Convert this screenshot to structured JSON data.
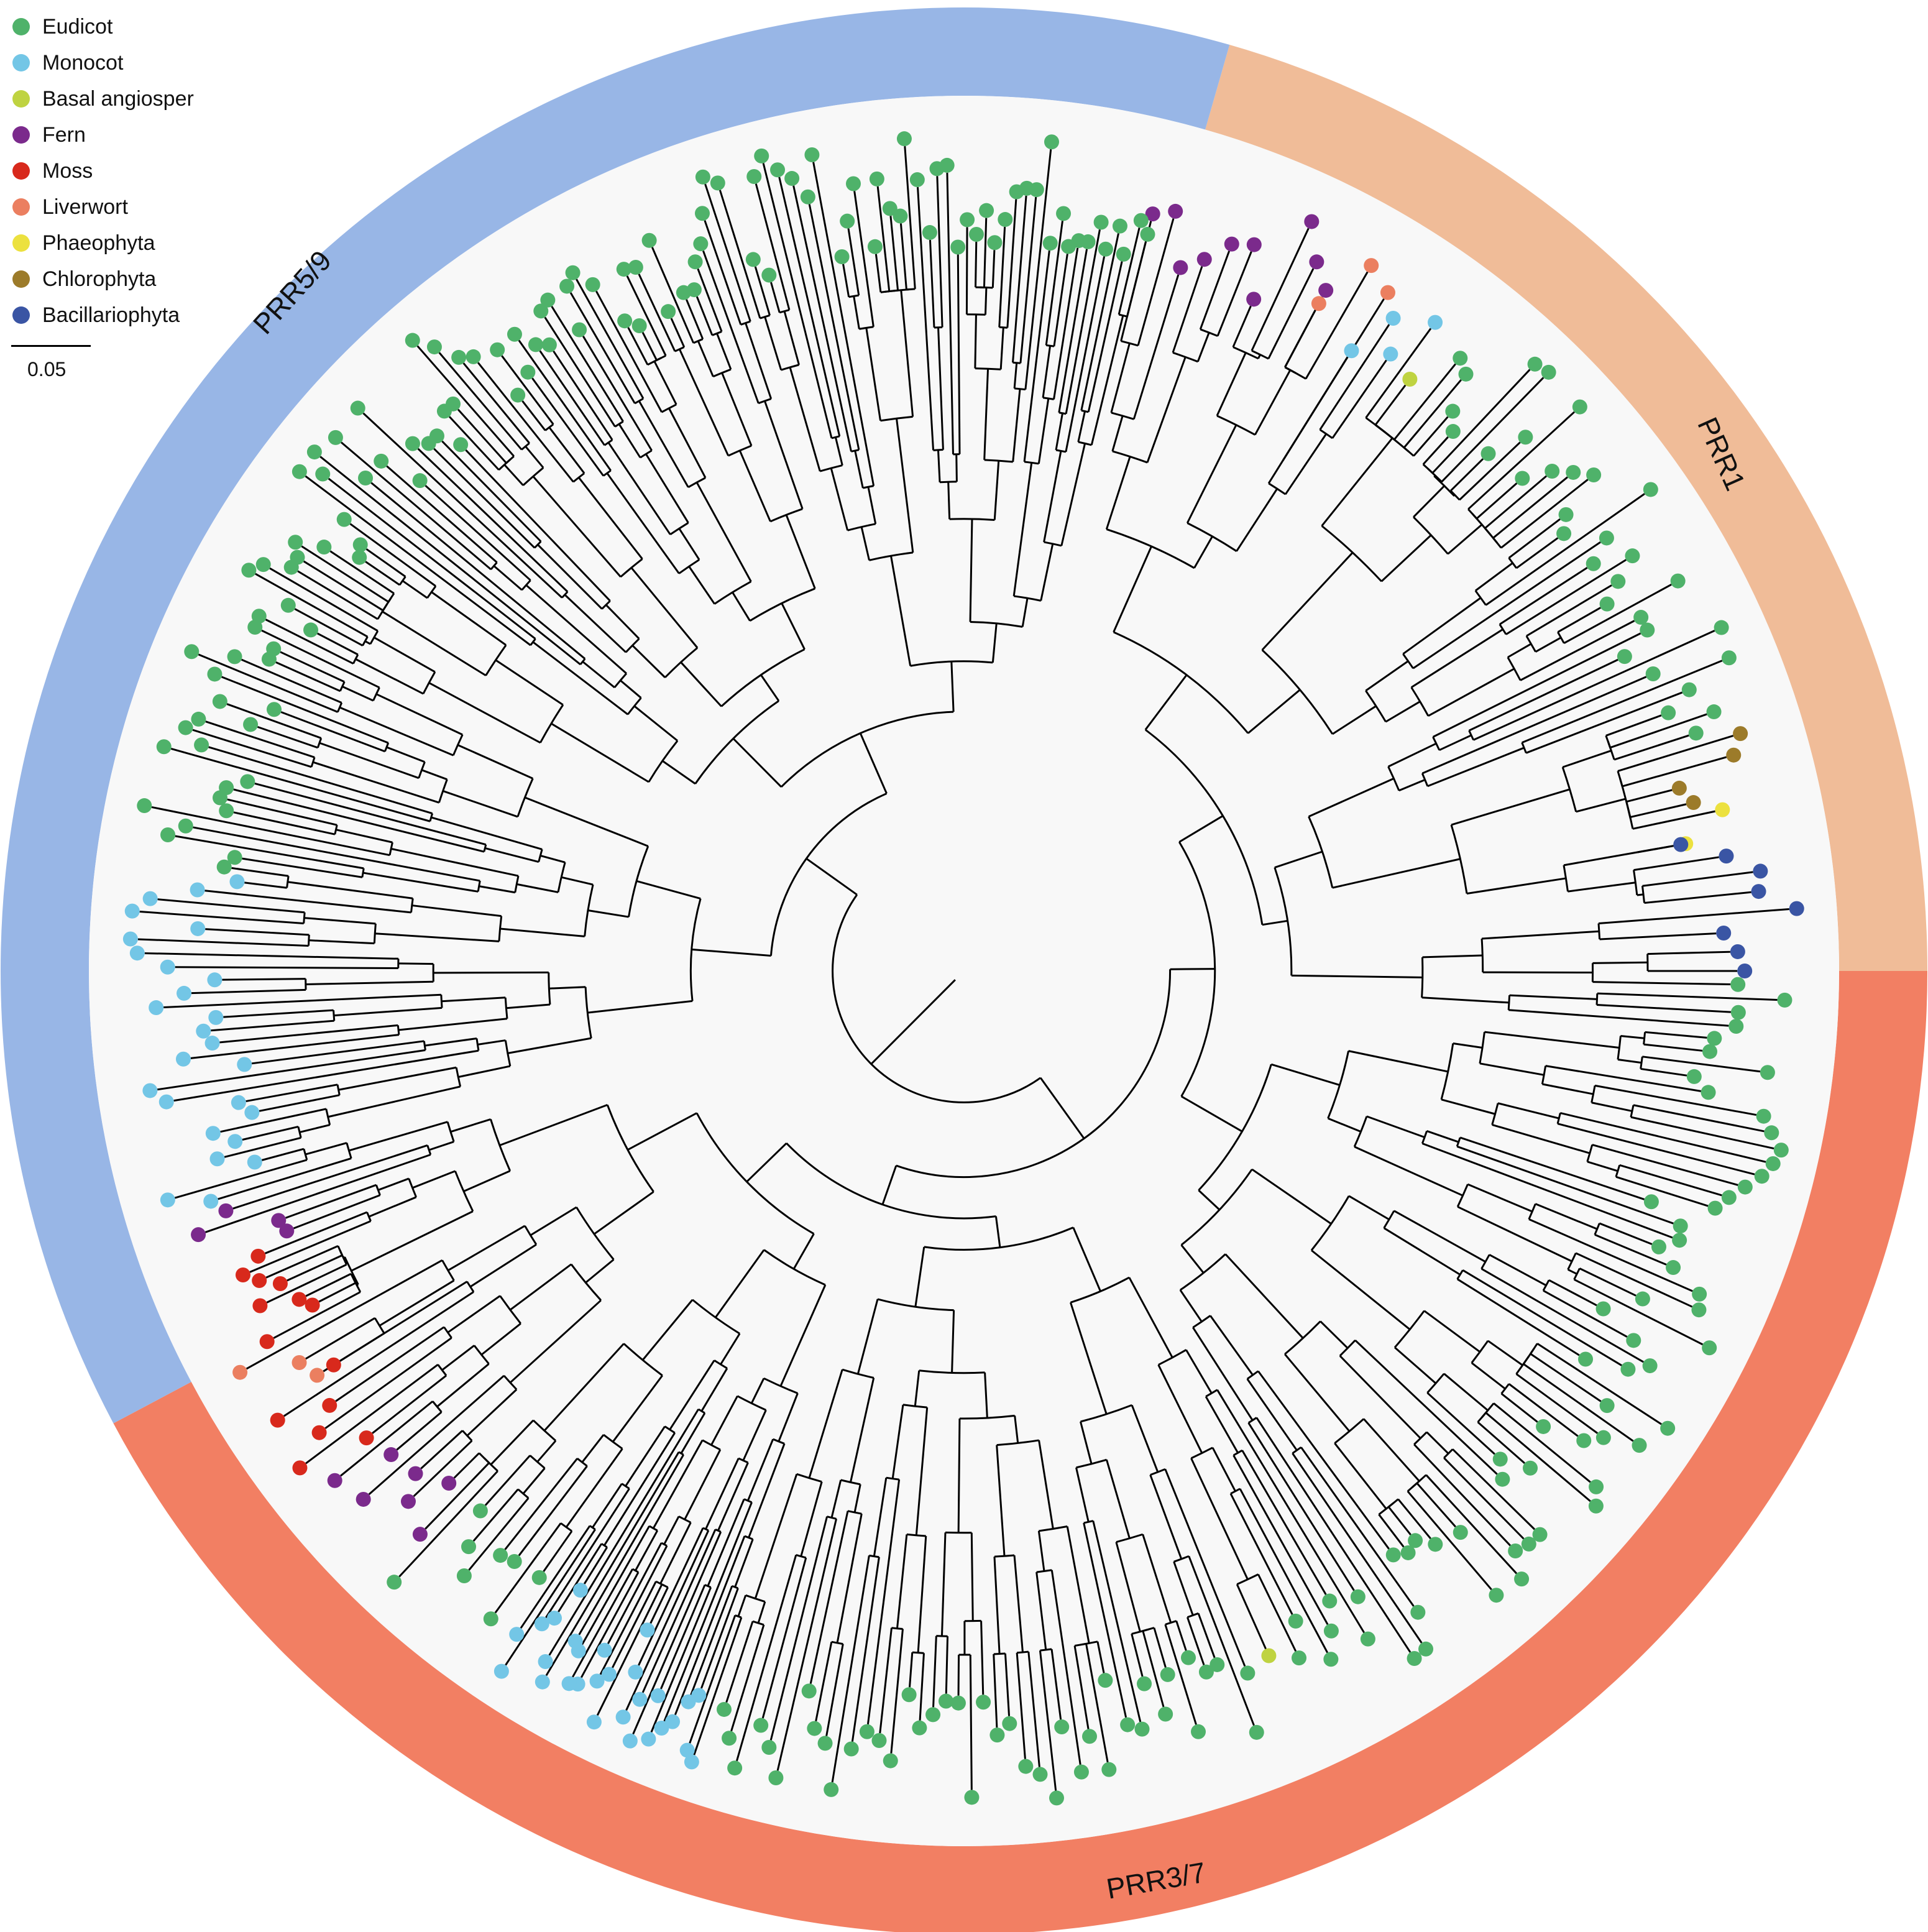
{
  "legend": [
    {
      "label": "Eudicot",
      "color": "#4fb26a"
    },
    {
      "label": "Monocot",
      "color": "#73c6e6"
    },
    {
      "label": "Basal angiosper",
      "color": "#bfd341"
    },
    {
      "label": "Fern",
      "color": "#7b2a8c"
    },
    {
      "label": "Moss",
      "color": "#d8291c"
    },
    {
      "label": "Liverwort",
      "color": "#eb7f60"
    },
    {
      "label": "Phaeophyta",
      "color": "#ece13f"
    },
    {
      "label": "Chlorophyta",
      "color": "#9c7b2a"
    },
    {
      "label": "Bacillariophyta",
      "color": "#3a55a4"
    }
  ],
  "scale_bar": {
    "label": "0.05",
    "value": 0.05
  },
  "sectors": [
    {
      "name": "PRR1",
      "color": "#f0bc98",
      "start_deg": -74,
      "end_deg": 0
    },
    {
      "name": "PRR3/7",
      "color": "#f27f63",
      "start_deg": 0,
      "end_deg": 152
    },
    {
      "name": "PRR5/9",
      "color": "#98b6e6",
      "start_deg": 152,
      "end_deg": 286
    }
  ],
  "clades": [
    {
      "start": -76,
      "end": -62,
      "color": "#7b2a8c",
      "n": 10
    },
    {
      "start": -62,
      "end": -58,
      "color": "#eb7f60",
      "n": 3
    },
    {
      "start": -58,
      "end": -54,
      "color": "#73c6e6",
      "n": 4
    },
    {
      "start": -54,
      "end": -52,
      "color": "#bfd341",
      "n": 1
    },
    {
      "start": -51,
      "end": -18,
      "color": "#4fb26a",
      "n": 32
    },
    {
      "start": -17,
      "end": -13,
      "color": "#9c7b2a",
      "n": 4
    },
    {
      "start": -12,
      "end": -10,
      "color": "#ece13f",
      "n": 2
    },
    {
      "start": -10,
      "end": 0,
      "color": "#3a55a4",
      "n": 8
    },
    {
      "start": 1,
      "end": 64,
      "color": "#4fb26a",
      "n": 62
    },
    {
      "start": 65,
      "end": 67,
      "color": "#bfd341",
      "n": 1
    },
    {
      "start": 68,
      "end": 108,
      "color": "#4fb26a",
      "n": 42
    },
    {
      "start": 109,
      "end": 124,
      "color": "#73c6e6",
      "n": 28
    },
    {
      "start": 125,
      "end": 133,
      "color": "#4fb26a",
      "n": 8
    },
    {
      "start": 134,
      "end": 141,
      "color": "#7b2a8c",
      "n": 7
    },
    {
      "start": 142,
      "end": 148,
      "color": "#d8291c",
      "n": 6
    },
    {
      "start": 148,
      "end": 151,
      "color": "#eb7f60",
      "n": 3
    },
    {
      "start": 152,
      "end": 158,
      "color": "#d8291c",
      "n": 8
    },
    {
      "start": 159,
      "end": 162,
      "color": "#7b2a8c",
      "n": 4
    },
    {
      "start": 163,
      "end": 187,
      "color": "#73c6e6",
      "n": 26
    },
    {
      "start": 188,
      "end": 262,
      "color": "#4fb26a",
      "n": 88
    },
    {
      "start": 263,
      "end": 284,
      "color": "#4fb26a",
      "n": 30
    }
  ]
}
